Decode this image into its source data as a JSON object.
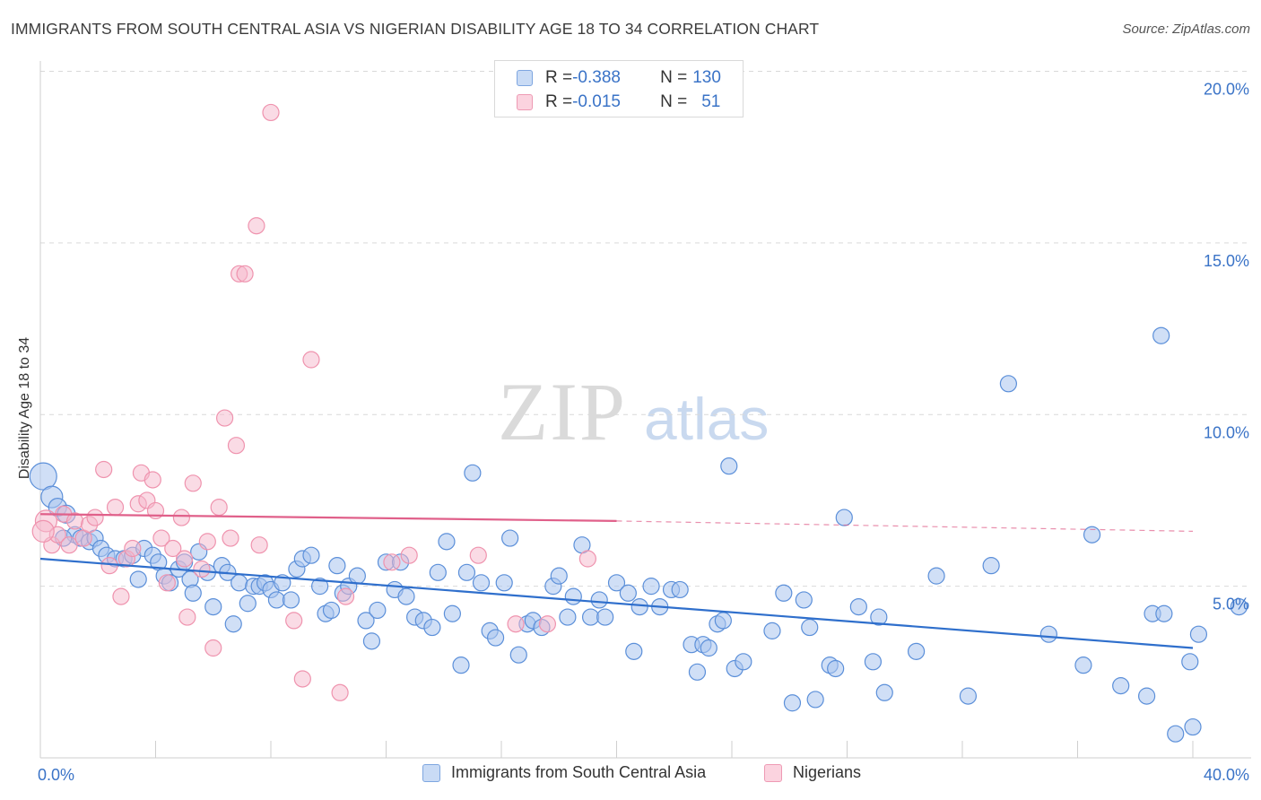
{
  "title": "IMMIGRANTS FROM SOUTH CENTRAL ASIA VS NIGERIAN DISABILITY AGE 18 TO 34 CORRELATION CHART",
  "source": "Source: ZipAtlas.com",
  "watermark": {
    "zip": "ZIP",
    "atlas": "atlas"
  },
  "legend": {
    "rows": [
      {
        "r_label": "R = ",
        "r_value": "-0.388",
        "n_label": "N = ",
        "n_value": "130",
        "color": "#a9c5ef"
      },
      {
        "r_label": "R = ",
        "r_value": "-0.015",
        "n_label": "N = ",
        "n_value": "51",
        "color": "#f5b8cb"
      }
    ]
  },
  "bottom_legend": [
    "Immigrants from South Central Asia",
    "Nigerians"
  ],
  "chart_data": {
    "type": "scatter",
    "title": "IMMIGRANTS FROM SOUTH CENTRAL ASIA VS NIGERIAN DISABILITY AGE 18 TO 34 CORRELATION CHART",
    "xlabel": "",
    "ylabel": "Disability Age 18 to 34",
    "xlim": [
      0,
      40
    ],
    "ylim": [
      0,
      20.5
    ],
    "x_tick_labels": [
      "0.0%",
      "40.0%"
    ],
    "y_ticks": [
      5,
      10,
      15,
      20
    ],
    "y_tick_labels": [
      "5.0%",
      "10.0%",
      "15.0%",
      "20.0%"
    ],
    "grid": "horizontal dashed",
    "legend_position": "top-center",
    "series": [
      {
        "name": "Immigrants from South Central Asia",
        "color": "#5b8fd9",
        "fill": "#a9c5ef",
        "trend": {
          "x0": 0,
          "y0": 5.8,
          "x1": 40,
          "y1": 3.2,
          "color": "#2f6fcc"
        },
        "points": [
          [
            0.1,
            8.2
          ],
          [
            0.4,
            7.6
          ],
          [
            0.6,
            7.3
          ],
          [
            0.9,
            7.1
          ],
          [
            1.2,
            6.5
          ],
          [
            1.4,
            6.4
          ],
          [
            1.7,
            6.3
          ],
          [
            1.9,
            6.4
          ],
          [
            2.1,
            6.1
          ],
          [
            2.3,
            5.9
          ],
          [
            2.6,
            5.8
          ],
          [
            2.9,
            5.8
          ],
          [
            3.2,
            5.9
          ],
          [
            3.4,
            5.2
          ],
          [
            3.6,
            6.1
          ],
          [
            3.9,
            5.9
          ],
          [
            4.1,
            5.7
          ],
          [
            4.3,
            5.3
          ],
          [
            4.5,
            5.1
          ],
          [
            4.8,
            5.5
          ],
          [
            5.0,
            5.7
          ],
          [
            5.2,
            5.2
          ],
          [
            5.3,
            4.8
          ],
          [
            5.5,
            6.0
          ],
          [
            5.8,
            5.4
          ],
          [
            6.0,
            4.4
          ],
          [
            6.3,
            5.6
          ],
          [
            6.5,
            5.4
          ],
          [
            6.7,
            3.9
          ],
          [
            6.9,
            5.1
          ],
          [
            7.2,
            4.5
          ],
          [
            7.4,
            5.0
          ],
          [
            7.6,
            5.0
          ],
          [
            7.8,
            5.1
          ],
          [
            8.0,
            4.9
          ],
          [
            8.2,
            4.6
          ],
          [
            8.4,
            5.1
          ],
          [
            8.7,
            4.6
          ],
          [
            8.9,
            5.5
          ],
          [
            9.1,
            5.8
          ],
          [
            9.4,
            5.9
          ],
          [
            9.7,
            5.0
          ],
          [
            9.9,
            4.2
          ],
          [
            10.1,
            4.3
          ],
          [
            10.3,
            5.6
          ],
          [
            10.5,
            4.8
          ],
          [
            10.7,
            5.0
          ],
          [
            11.0,
            5.3
          ],
          [
            11.3,
            4.0
          ],
          [
            11.5,
            3.4
          ],
          [
            11.7,
            4.3
          ],
          [
            12.0,
            5.7
          ],
          [
            12.3,
            4.9
          ],
          [
            12.5,
            5.7
          ],
          [
            12.7,
            4.7
          ],
          [
            13.0,
            4.1
          ],
          [
            13.3,
            4.0
          ],
          [
            13.6,
            3.8
          ],
          [
            13.8,
            5.4
          ],
          [
            14.1,
            6.3
          ],
          [
            14.3,
            4.2
          ],
          [
            14.6,
            2.7
          ],
          [
            14.8,
            5.4
          ],
          [
            15.0,
            8.3
          ],
          [
            15.3,
            5.1
          ],
          [
            15.6,
            3.7
          ],
          [
            15.8,
            3.5
          ],
          [
            16.1,
            5.1
          ],
          [
            16.3,
            6.4
          ],
          [
            16.6,
            3.0
          ],
          [
            16.9,
            3.9
          ],
          [
            17.1,
            4.0
          ],
          [
            17.4,
            3.8
          ],
          [
            17.8,
            5.0
          ],
          [
            18.0,
            5.3
          ],
          [
            18.3,
            4.1
          ],
          [
            18.5,
            4.7
          ],
          [
            18.8,
            6.2
          ],
          [
            19.1,
            4.1
          ],
          [
            19.4,
            4.6
          ],
          [
            19.6,
            4.1
          ],
          [
            20.0,
            5.1
          ],
          [
            20.4,
            4.8
          ],
          [
            20.6,
            3.1
          ],
          [
            20.8,
            4.4
          ],
          [
            21.2,
            5.0
          ],
          [
            21.5,
            4.4
          ],
          [
            21.9,
            4.9
          ],
          [
            22.2,
            4.9
          ],
          [
            22.6,
            3.3
          ],
          [
            22.8,
            2.5
          ],
          [
            23.0,
            3.3
          ],
          [
            23.2,
            3.2
          ],
          [
            23.5,
            3.9
          ],
          [
            23.7,
            4.0
          ],
          [
            23.9,
            8.5
          ],
          [
            24.1,
            2.6
          ],
          [
            24.4,
            2.8
          ],
          [
            25.4,
            3.7
          ],
          [
            25.8,
            4.8
          ],
          [
            26.1,
            1.6
          ],
          [
            26.5,
            4.6
          ],
          [
            26.7,
            3.8
          ],
          [
            26.9,
            1.7
          ],
          [
            27.4,
            2.7
          ],
          [
            27.6,
            2.6
          ],
          [
            27.9,
            7.0
          ],
          [
            28.4,
            4.4
          ],
          [
            28.9,
            2.8
          ],
          [
            29.1,
            4.1
          ],
          [
            29.3,
            1.9
          ],
          [
            30.4,
            3.1
          ],
          [
            31.1,
            5.3
          ],
          [
            32.2,
            1.8
          ],
          [
            33.0,
            5.6
          ],
          [
            33.6,
            10.9
          ],
          [
            35.0,
            3.6
          ],
          [
            36.2,
            2.7
          ],
          [
            36.5,
            6.5
          ],
          [
            37.5,
            2.1
          ],
          [
            38.4,
            1.8
          ],
          [
            38.6,
            4.2
          ],
          [
            39.0,
            4.2
          ],
          [
            38.9,
            12.3
          ],
          [
            39.4,
            0.7
          ],
          [
            39.9,
            2.8
          ],
          [
            40.0,
            0.9
          ],
          [
            40.2,
            3.6
          ],
          [
            41.6,
            4.4
          ],
          [
            0.8,
            6.4
          ]
        ]
      },
      {
        "name": "Nigerians",
        "color": "#ef93ae",
        "fill": "#f5b8cb",
        "trend": {
          "x0": 0,
          "y0": 7.1,
          "x1": 20,
          "y1": 6.9,
          "dashed_to_x": 40,
          "dashed_to_y": 6.6,
          "color": "#e0608a"
        },
        "points": [
          [
            0.2,
            6.9
          ],
          [
            0.4,
            6.2
          ],
          [
            0.6,
            6.5
          ],
          [
            0.8,
            7.1
          ],
          [
            1.0,
            6.2
          ],
          [
            1.2,
            6.9
          ],
          [
            1.5,
            6.4
          ],
          [
            1.7,
            6.8
          ],
          [
            1.9,
            7.0
          ],
          [
            2.2,
            8.4
          ],
          [
            2.4,
            5.6
          ],
          [
            2.6,
            7.3
          ],
          [
            2.8,
            4.7
          ],
          [
            3.0,
            5.8
          ],
          [
            3.2,
            6.1
          ],
          [
            3.4,
            7.4
          ],
          [
            3.5,
            8.3
          ],
          [
            3.7,
            7.5
          ],
          [
            3.9,
            8.1
          ],
          [
            4.0,
            7.2
          ],
          [
            4.2,
            6.4
          ],
          [
            4.4,
            5.1
          ],
          [
            4.6,
            6.1
          ],
          [
            4.9,
            7.0
          ],
          [
            5.0,
            5.8
          ],
          [
            5.1,
            4.1
          ],
          [
            5.3,
            8.0
          ],
          [
            5.6,
            5.5
          ],
          [
            5.8,
            6.3
          ],
          [
            6.0,
            3.2
          ],
          [
            6.2,
            7.3
          ],
          [
            6.4,
            9.9
          ],
          [
            6.6,
            6.4
          ],
          [
            6.8,
            9.1
          ],
          [
            6.9,
            14.1
          ],
          [
            7.1,
            14.1
          ],
          [
            7.5,
            15.5
          ],
          [
            7.6,
            6.2
          ],
          [
            8.0,
            18.8
          ],
          [
            8.8,
            4.0
          ],
          [
            9.1,
            2.3
          ],
          [
            9.4,
            11.6
          ],
          [
            10.4,
            1.9
          ],
          [
            10.6,
            4.7
          ],
          [
            12.2,
            5.7
          ],
          [
            12.8,
            5.9
          ],
          [
            15.2,
            5.9
          ],
          [
            16.5,
            3.9
          ],
          [
            17.6,
            3.9
          ],
          [
            19.0,
            5.8
          ],
          [
            0.1,
            6.6
          ]
        ]
      }
    ]
  }
}
